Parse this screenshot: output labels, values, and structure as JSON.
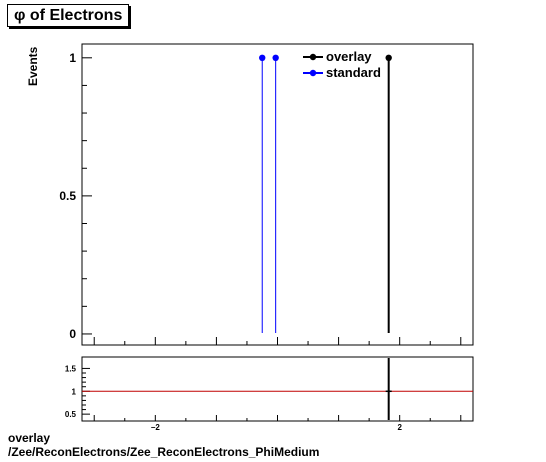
{
  "chart_data": [
    {
      "type": "scatter",
      "title": "φ of Electrons",
      "ylabel": "Events",
      "xlim": [
        -3.2,
        3.2
      ],
      "ylim": [
        -0.04,
        1.05
      ],
      "y_ticks": [
        0,
        0.5,
        1
      ],
      "y_tick_labels": [
        "0",
        "0.5",
        "1"
      ],
      "legend": "top-right",
      "series": [
        {
          "name": "overlay",
          "color": "#000000",
          "x": [
            1.82
          ],
          "y": [
            1
          ]
        },
        {
          "name": "standard",
          "color": "#0000ff",
          "x": [
            -0.25,
            -0.03
          ],
          "y": [
            1,
            1
          ]
        }
      ]
    },
    {
      "type": "line",
      "xlim": [
        -3.2,
        3.2
      ],
      "ylim": [
        0.35,
        1.75
      ],
      "y_ticks": [
        0.5,
        1,
        1.5
      ],
      "y_tick_labels": [
        "0.5",
        "1",
        "1.5"
      ],
      "x_ticks": [
        -2,
        2
      ],
      "x_tick_labels": [
        "−2",
        "2"
      ],
      "reference_line": {
        "y": 1,
        "color": "#c00000"
      },
      "series": [
        {
          "name": "",
          "color": "#000000",
          "x": [
            1.82
          ],
          "y": [
            1
          ]
        }
      ]
    }
  ],
  "footer": {
    "line1": "overlay",
    "line2": "/Zee/ReconElectrons/Zee_ReconElectrons_PhiMedium"
  }
}
